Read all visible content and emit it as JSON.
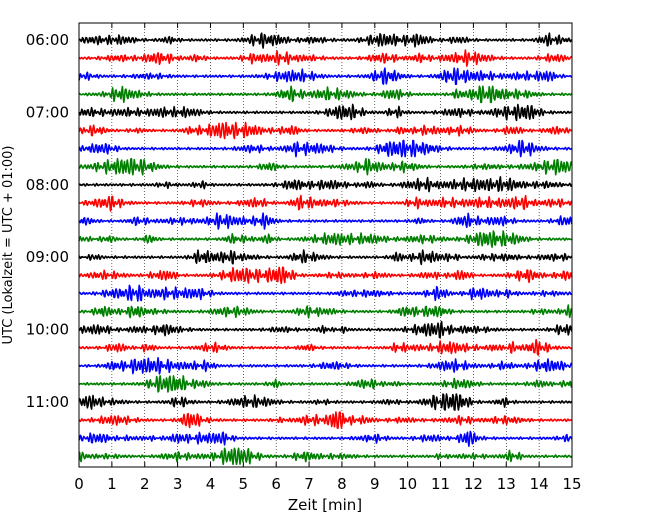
{
  "chart_data": {
    "type": "line",
    "title": "",
    "xlabel": "Zeit  [min]",
    "ylabel": "UTC (Lokalzeit = UTC + 01:00)",
    "xlim": [
      0,
      15
    ],
    "x_ticks": [
      "0",
      "1",
      "2",
      "3",
      "4",
      "5",
      "6",
      "7",
      "8",
      "9",
      "10",
      "11",
      "12",
      "13",
      "14",
      "15"
    ],
    "y_ticks": [
      "06:00",
      "07:00",
      "08:00",
      "09:00",
      "10:00",
      "11:00"
    ],
    "grid": "vertical dotted at each minute",
    "trace_interval_minutes": 15,
    "trace_colors": [
      "#000000",
      "#ff0000",
      "#0000ff",
      "#007f00"
    ],
    "series": [
      {
        "start": "06:00"
      },
      {
        "start": "06:15"
      },
      {
        "start": "06:30"
      },
      {
        "start": "06:45"
      },
      {
        "start": "07:00"
      },
      {
        "start": "07:15"
      },
      {
        "start": "07:30"
      },
      {
        "start": "07:45"
      },
      {
        "start": "08:00"
      },
      {
        "start": "08:15"
      },
      {
        "start": "08:30"
      },
      {
        "start": "08:45"
      },
      {
        "start": "09:00"
      },
      {
        "start": "09:15"
      },
      {
        "start": "09:30"
      },
      {
        "start": "09:45"
      },
      {
        "start": "10:00"
      },
      {
        "start": "10:15"
      },
      {
        "start": "10:30"
      },
      {
        "start": "10:45"
      },
      {
        "start": "11:00"
      },
      {
        "start": "11:15"
      },
      {
        "start": "11:30"
      },
      {
        "start": "11:45"
      }
    ]
  }
}
